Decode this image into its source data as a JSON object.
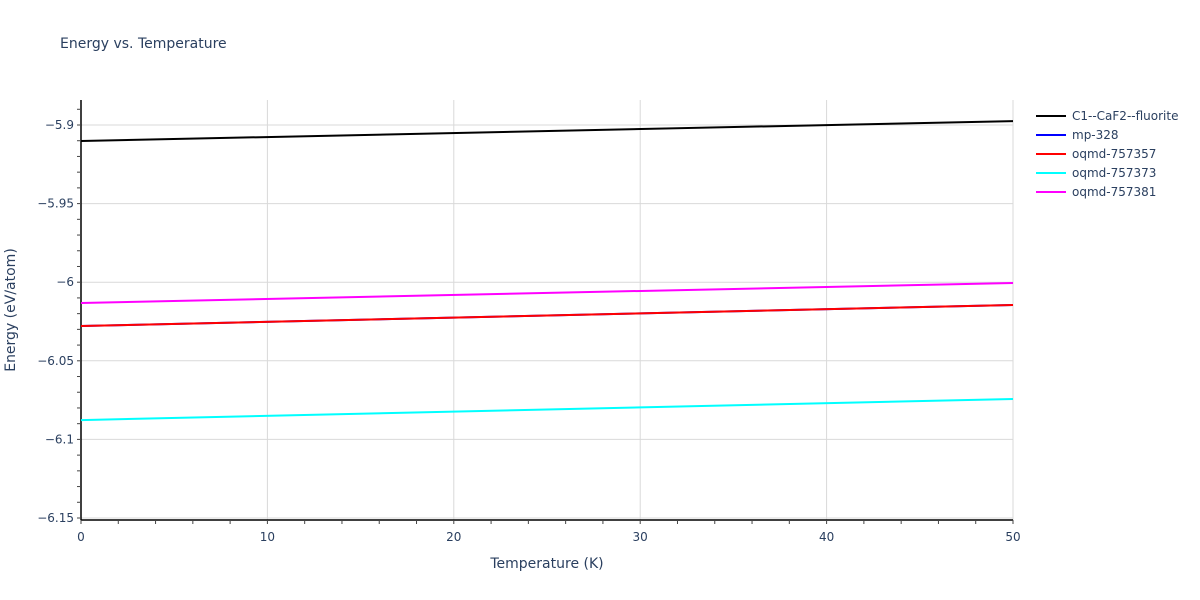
{
  "chart_data": {
    "type": "line",
    "title": "Energy vs. Temperature",
    "xlabel": "Temperature (K)",
    "ylabel": "Energy (eV/atom)",
    "xlim": [
      0,
      50
    ],
    "ylim": [
      -6.152,
      -5.888
    ],
    "x_ticks": [
      0,
      10,
      20,
      30,
      40,
      50
    ],
    "x_tick_labels": [
      "0",
      "10",
      "20",
      "30",
      "40",
      "50"
    ],
    "y_ticks": [
      -5.9,
      -5.95,
      -6.0,
      -6.05,
      -6.1,
      -6.15
    ],
    "y_tick_labels": [
      "−5.9",
      "−5.95",
      "−6",
      "−6.05",
      "−6.1",
      "−6.15"
    ],
    "grid": true,
    "legend_position": "right",
    "x": [
      0,
      50
    ],
    "series": [
      {
        "name": "C1--CaF2--fluorite",
        "color": "#000000",
        "values": [
          -5.9102,
          -5.8975
        ]
      },
      {
        "name": "mp-328",
        "color": "#0000ff",
        "values": [
          -6.0279,
          -6.0145
        ]
      },
      {
        "name": "oqmd-757357",
        "color": "#ff0000",
        "values": [
          -6.0279,
          -6.0145
        ]
      },
      {
        "name": "oqmd-757373",
        "color": "#00ffff",
        "values": [
          -6.0877,
          -6.0743
        ]
      },
      {
        "name": "oqmd-757381",
        "color": "#ff00ff",
        "values": [
          -6.0132,
          -6.0005
        ]
      }
    ]
  }
}
